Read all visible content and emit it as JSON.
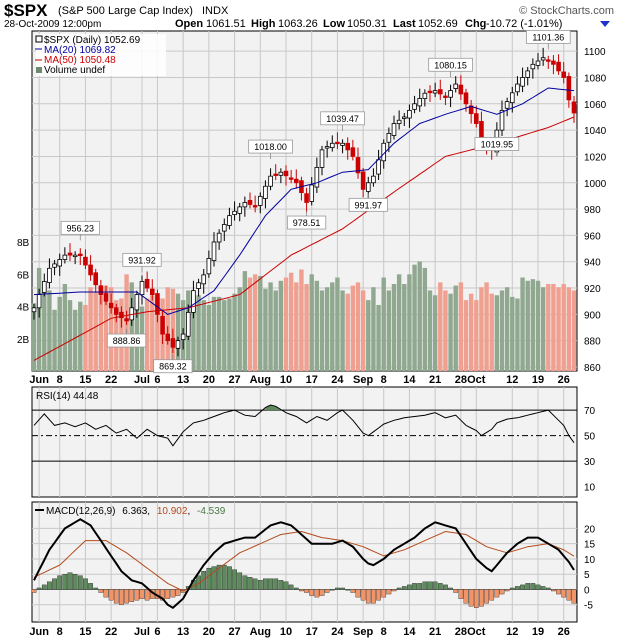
{
  "header": {
    "symbol": "$SPX",
    "name": "(S&P 500 Large Cap Index)",
    "exchange": "INDX",
    "brand": "© StockCharts.com",
    "date_time": "28-Oct-2009 12:00pm",
    "open_label": "Open",
    "open": "1061.51",
    "high_label": "High",
    "high": "1063.26",
    "low_label": "Low",
    "low": "1050.31",
    "last_label": "Last",
    "last": "1052.69",
    "chg_label": "Chg",
    "chg": "-10.72 (-1.01%)"
  },
  "legend": {
    "price": "$SPX (Daily) 1052.69",
    "ma20": "MA(20) 1069.82",
    "ma50": "MA(50) 1050.48",
    "volume": "Volume undef"
  },
  "rsi_label": "RSI(14) 44.48",
  "macd_label": {
    "name": "MACD(12,26,9)",
    "v1": "6.363",
    "v2": "10.902",
    "v3": "-4.539"
  },
  "colors": {
    "up": "#000000",
    "down": "#cc0000",
    "ma20": "#0000a0",
    "ma50": "#cc0000",
    "vol_up": "#8fa88f",
    "vol_down": "#f0a090",
    "hist_pos": "#5e8a5e",
    "hist_neg": "#f0956a",
    "panel_bg": "#f2f2f2",
    "grid": "#c8c8c8"
  },
  "chart_data": [
    {
      "type": "candlestick",
      "title": "$SPX (Daily)",
      "ylim": [
        860,
        1110
      ],
      "y_ticks": [
        860,
        880,
        900,
        920,
        940,
        960,
        980,
        1000,
        1020,
        1040,
        1060,
        1080,
        1100
      ],
      "x_tick_labels": [
        "Jun",
        "8",
        "15",
        "22",
        "Jul",
        "6",
        "13",
        "20",
        "27",
        "Aug",
        "10",
        "17",
        "24",
        "Sep",
        "8",
        "14",
        "21",
        "28",
        "Oct",
        "12",
        "19",
        "26"
      ],
      "x_tick_sessions": [
        1,
        5,
        10,
        15,
        21,
        24,
        29,
        34,
        39,
        44,
        49,
        54,
        59,
        64,
        68,
        73,
        78,
        83,
        86,
        93,
        98,
        103
      ],
      "annotations": [
        {
          "session": 9,
          "value": 956.23,
          "text": "956.23"
        },
        {
          "session": 18,
          "value": 888.86,
          "text": "888.86"
        },
        {
          "session": 21,
          "value": 931.92,
          "text": "931.92"
        },
        {
          "session": 27,
          "value": 869.32,
          "text": "869.32"
        },
        {
          "session": 46,
          "value": 1018.0,
          "text": "1018.00"
        },
        {
          "session": 53,
          "value": 978.51,
          "text": "978.51"
        },
        {
          "session": 60,
          "value": 1039.47,
          "text": "1039.47"
        },
        {
          "session": 65,
          "value": 991.97,
          "text": "991.97"
        },
        {
          "session": 81,
          "value": 1080.15,
          "text": "1080.15"
        },
        {
          "session": 90,
          "value": 1019.95,
          "text": "1019.95"
        },
        {
          "session": 100,
          "value": 1101.36,
          "text": "1101.36"
        }
      ],
      "close_anchors": [
        [
          0,
          905
        ],
        [
          3,
          935
        ],
        [
          6,
          945
        ],
        [
          9,
          945
        ],
        [
          11,
          930
        ],
        [
          13,
          915
        ],
        [
          16,
          900
        ],
        [
          18,
          895
        ],
        [
          21,
          925
        ],
        [
          23,
          915
        ],
        [
          25,
          885
        ],
        [
          27,
          875
        ],
        [
          29,
          885
        ],
        [
          31,
          918
        ],
        [
          33,
          930
        ],
        [
          35,
          955
        ],
        [
          38,
          975
        ],
        [
          41,
          985
        ],
        [
          43,
          982
        ],
        [
          46,
          1005
        ],
        [
          48,
          1008
        ],
        [
          51,
          1000
        ],
        [
          53,
          985
        ],
        [
          56,
          1025
        ],
        [
          58,
          1030
        ],
        [
          60,
          1030
        ],
        [
          62,
          1020
        ],
        [
          64,
          995
        ],
        [
          66,
          1005
        ],
        [
          68,
          1030
        ],
        [
          70,
          1045
        ],
        [
          72,
          1050
        ],
        [
          74,
          1060
        ],
        [
          76,
          1068
        ],
        [
          78,
          1070
        ],
        [
          80,
          1065
        ],
        [
          82,
          1075
        ],
        [
          84,
          1060
        ],
        [
          86,
          1045
        ],
        [
          87,
          1030
        ],
        [
          89,
          1025
        ],
        [
          90,
          1040
        ],
        [
          91,
          1055
        ],
        [
          94,
          1075
        ],
        [
          97,
          1090
        ],
        [
          99,
          1095
        ],
        [
          101,
          1090
        ],
        [
          103,
          1080
        ],
        [
          104,
          1063
        ],
        [
          105,
          1053
        ]
      ],
      "ma20_anchors": [
        [
          0,
          915
        ],
        [
          9,
          917
        ],
        [
          20,
          917
        ],
        [
          26,
          900
        ],
        [
          30,
          905
        ],
        [
          35,
          918
        ],
        [
          40,
          945
        ],
        [
          45,
          975
        ],
        [
          50,
          995
        ],
        [
          55,
          1000
        ],
        [
          60,
          1008
        ],
        [
          65,
          1010
        ],
        [
          70,
          1030
        ],
        [
          75,
          1045
        ],
        [
          80,
          1052
        ],
        [
          85,
          1058
        ],
        [
          90,
          1052
        ],
        [
          95,
          1060
        ],
        [
          100,
          1072
        ],
        [
          105,
          1070
        ]
      ],
      "ma50_anchors": [
        [
          0,
          865
        ],
        [
          8,
          882
        ],
        [
          15,
          897
        ],
        [
          22,
          902
        ],
        [
          30,
          905
        ],
        [
          40,
          915
        ],
        [
          50,
          945
        ],
        [
          60,
          965
        ],
        [
          70,
          993
        ],
        [
          80,
          1020
        ],
        [
          90,
          1030
        ],
        [
          100,
          1042
        ],
        [
          105,
          1050
        ]
      ]
    },
    {
      "type": "bar",
      "title": "Volume",
      "ylim": [
        0,
        9
      ],
      "y_ticks": [
        2,
        4,
        6,
        8
      ],
      "y_tick_labels": [
        "2B",
        "4B",
        "6B",
        "8B"
      ],
      "values": [
        4.2,
        6.4,
        5.2,
        5.0,
        3.8,
        4.6,
        5.4,
        4.4,
        3.8,
        4.3,
        4.1,
        5.2,
        4.9,
        4.7,
        5.3,
        5.2,
        4.4,
        4.5,
        6.0,
        5.5,
        4.3,
        4.0,
        4.5,
        4.7,
        4.6,
        4.5,
        5.2,
        5.1,
        4.8,
        4.4,
        5.0,
        4.6,
        4.7,
        4.4,
        4.1,
        4.6,
        4.6,
        4.4,
        4.5,
        4.8,
        5.2,
        6.2,
        5.8,
        6.0,
        5.9,
        5.1,
        5.5,
        5.0,
        5.6,
        5.8,
        6.1,
        5.5,
        6.3,
        5.4,
        6.0,
        5.6,
        5.0,
        5.2,
        5.5,
        5.8,
        5.0,
        4.8,
        5.3,
        5.5,
        5.0,
        4.4,
        5.2,
        4.1,
        5.8,
        5.0,
        5.4,
        6.0,
        5.4,
        6.0,
        6.6,
        6.8,
        6.4,
        5.0,
        4.7,
        5.5,
        5.0,
        4.8,
        5.3,
        5.5,
        4.4,
        4.8,
        4.4,
        5.2,
        5.5,
        4.8,
        4.7,
        5.0,
        5.2,
        4.6,
        4.5,
        5.8,
        5.6,
        5.7,
        5.6,
        5.2,
        5.4,
        5.4,
        5.2,
        5.4,
        5.2,
        5.0
      ]
    },
    {
      "type": "line",
      "title": "RSI(14)",
      "ylim": [
        5,
        85
      ],
      "y_ticks": [
        10,
        30,
        50,
        70
      ],
      "reference_lines": [
        30,
        50,
        70
      ],
      "anchors": [
        [
          0,
          58
        ],
        [
          2,
          67
        ],
        [
          4,
          58
        ],
        [
          6,
          60
        ],
        [
          8,
          57
        ],
        [
          10,
          60
        ],
        [
          12,
          55
        ],
        [
          14,
          58
        ],
        [
          16,
          52
        ],
        [
          18,
          55
        ],
        [
          20,
          48
        ],
        [
          22,
          55
        ],
        [
          24,
          50
        ],
        [
          26,
          48
        ],
        [
          27,
          42
        ],
        [
          29,
          53
        ],
        [
          31,
          60
        ],
        [
          33,
          62
        ],
        [
          35,
          65
        ],
        [
          37,
          68
        ],
        [
          39,
          70
        ],
        [
          41,
          66
        ],
        [
          43,
          65
        ],
        [
          45,
          72
        ],
        [
          46,
          74
        ],
        [
          47,
          73
        ],
        [
          49,
          68
        ],
        [
          51,
          65
        ],
        [
          53,
          60
        ],
        [
          55,
          65
        ],
        [
          57,
          62
        ],
        [
          59,
          68
        ],
        [
          60,
          70
        ],
        [
          62,
          62
        ],
        [
          64,
          52
        ],
        [
          65,
          50
        ],
        [
          66,
          53
        ],
        [
          68,
          59
        ],
        [
          70,
          62
        ],
        [
          72,
          64
        ],
        [
          74,
          65
        ],
        [
          76,
          66
        ],
        [
          78,
          68
        ],
        [
          80,
          64
        ],
        [
          82,
          66
        ],
        [
          84,
          58
        ],
        [
          86,
          54
        ],
        [
          87,
          50
        ],
        [
          89,
          55
        ],
        [
          90,
          60
        ],
        [
          92,
          63
        ],
        [
          94,
          64
        ],
        [
          96,
          66
        ],
        [
          98,
          68
        ],
        [
          100,
          70
        ],
        [
          101,
          66
        ],
        [
          103,
          58
        ],
        [
          104,
          50
        ],
        [
          105,
          44.48
        ]
      ]
    },
    {
      "type": "line",
      "title": "MACD(12,26,9)",
      "ylim": [
        -10,
        28
      ],
      "y_ticks": [
        -5,
        0,
        5,
        10,
        15,
        20
      ],
      "series": [
        {
          "name": "MACD",
          "anchors": [
            [
              0,
              3
            ],
            [
              3,
              13
            ],
            [
              6,
              20
            ],
            [
              9,
              23
            ],
            [
              11,
              21
            ],
            [
              13,
              16
            ],
            [
              15,
              11
            ],
            [
              17,
              6
            ],
            [
              19,
              3
            ],
            [
              21,
              2
            ],
            [
              23,
              -1
            ],
            [
              25,
              -3
            ],
            [
              26,
              -5
            ],
            [
              27,
              -6
            ],
            [
              29,
              -3
            ],
            [
              31,
              3
            ],
            [
              33,
              8
            ],
            [
              35,
              12
            ],
            [
              37,
              15
            ],
            [
              39,
              16
            ],
            [
              41,
              17
            ],
            [
              43,
              17
            ],
            [
              46,
              21
            ],
            [
              48,
              22
            ],
            [
              50,
              21
            ],
            [
              52,
              18
            ],
            [
              54,
              15
            ],
            [
              56,
              15
            ],
            [
              58,
              15
            ],
            [
              60,
              16
            ],
            [
              62,
              14
            ],
            [
              64,
              10
            ],
            [
              65,
              8.5
            ],
            [
              66,
              8
            ],
            [
              68,
              10
            ],
            [
              70,
              13
            ],
            [
              72,
              15
            ],
            [
              74,
              17
            ],
            [
              76,
              20
            ],
            [
              78,
              22
            ],
            [
              80,
              21
            ],
            [
              82,
              20
            ],
            [
              84,
              15
            ],
            [
              86,
              10
            ],
            [
              88,
              7
            ],
            [
              89,
              6
            ],
            [
              90,
              8
            ],
            [
              92,
              12
            ],
            [
              94,
              15
            ],
            [
              96,
              17
            ],
            [
              98,
              17
            ],
            [
              100,
              15
            ],
            [
              102,
              13
            ],
            [
              104,
              9
            ],
            [
              105,
              6.363
            ]
          ]
        },
        {
          "name": "Signal",
          "anchors": [
            [
              0,
              4
            ],
            [
              5,
              8
            ],
            [
              10,
              16
            ],
            [
              14,
              16
            ],
            [
              18,
              12
            ],
            [
              22,
              7
            ],
            [
              26,
              2
            ],
            [
              29,
              -0.5
            ],
            [
              32,
              2
            ],
            [
              36,
              7
            ],
            [
              40,
              12
            ],
            [
              44,
              15
            ],
            [
              48,
              18
            ],
            [
              52,
              19
            ],
            [
              56,
              17
            ],
            [
              60,
              16
            ],
            [
              64,
              14
            ],
            [
              68,
              11
            ],
            [
              72,
              13
            ],
            [
              76,
              16
            ],
            [
              80,
              19
            ],
            [
              84,
              18
            ],
            [
              88,
              14
            ],
            [
              92,
              12
            ],
            [
              96,
              14
            ],
            [
              100,
              15
            ],
            [
              103,
              13
            ],
            [
              105,
              10.902
            ]
          ]
        }
      ],
      "histogram": [
        -1.0,
        0.5,
        1.5,
        2.5,
        3.5,
        4.5,
        5.0,
        5.5,
        5.0,
        4.5,
        3.5,
        2.0,
        0.5,
        -1.0,
        -2.5,
        -3.5,
        -4.5,
        -5.0,
        -4.5,
        -4.0,
        -3.5,
        -3.0,
        -3.5,
        -3.0,
        -3.0,
        -3.5,
        -3.0,
        -2.5,
        -2.0,
        -1.0,
        1.0,
        3.0,
        4.5,
        6.0,
        7.0,
        7.5,
        8.0,
        8.0,
        7.5,
        6.5,
        5.5,
        4.5,
        4.0,
        3.5,
        3.0,
        3.5,
        3.5,
        3.5,
        3.0,
        2.5,
        1.5,
        0.5,
        -0.5,
        -1.0,
        -2.0,
        -2.5,
        -2.0,
        -1.0,
        0.0,
        0.5,
        0.5,
        0.0,
        -1.0,
        -2.5,
        -3.5,
        -4.5,
        -4.5,
        -3.5,
        -2.5,
        -1.5,
        -0.5,
        0.5,
        1.0,
        1.5,
        2.0,
        2.0,
        2.5,
        2.5,
        2.5,
        2.0,
        1.5,
        0.5,
        -1.0,
        -3.0,
        -4.5,
        -5.5,
        -6.0,
        -5.5,
        -4.5,
        -3.5,
        -2.5,
        -1.5,
        -0.5,
        0.5,
        1.0,
        1.5,
        2.0,
        2.0,
        1.5,
        1.0,
        0.5,
        -0.5,
        -1.5,
        -2.5,
        -3.5,
        -4.5
      ]
    }
  ]
}
